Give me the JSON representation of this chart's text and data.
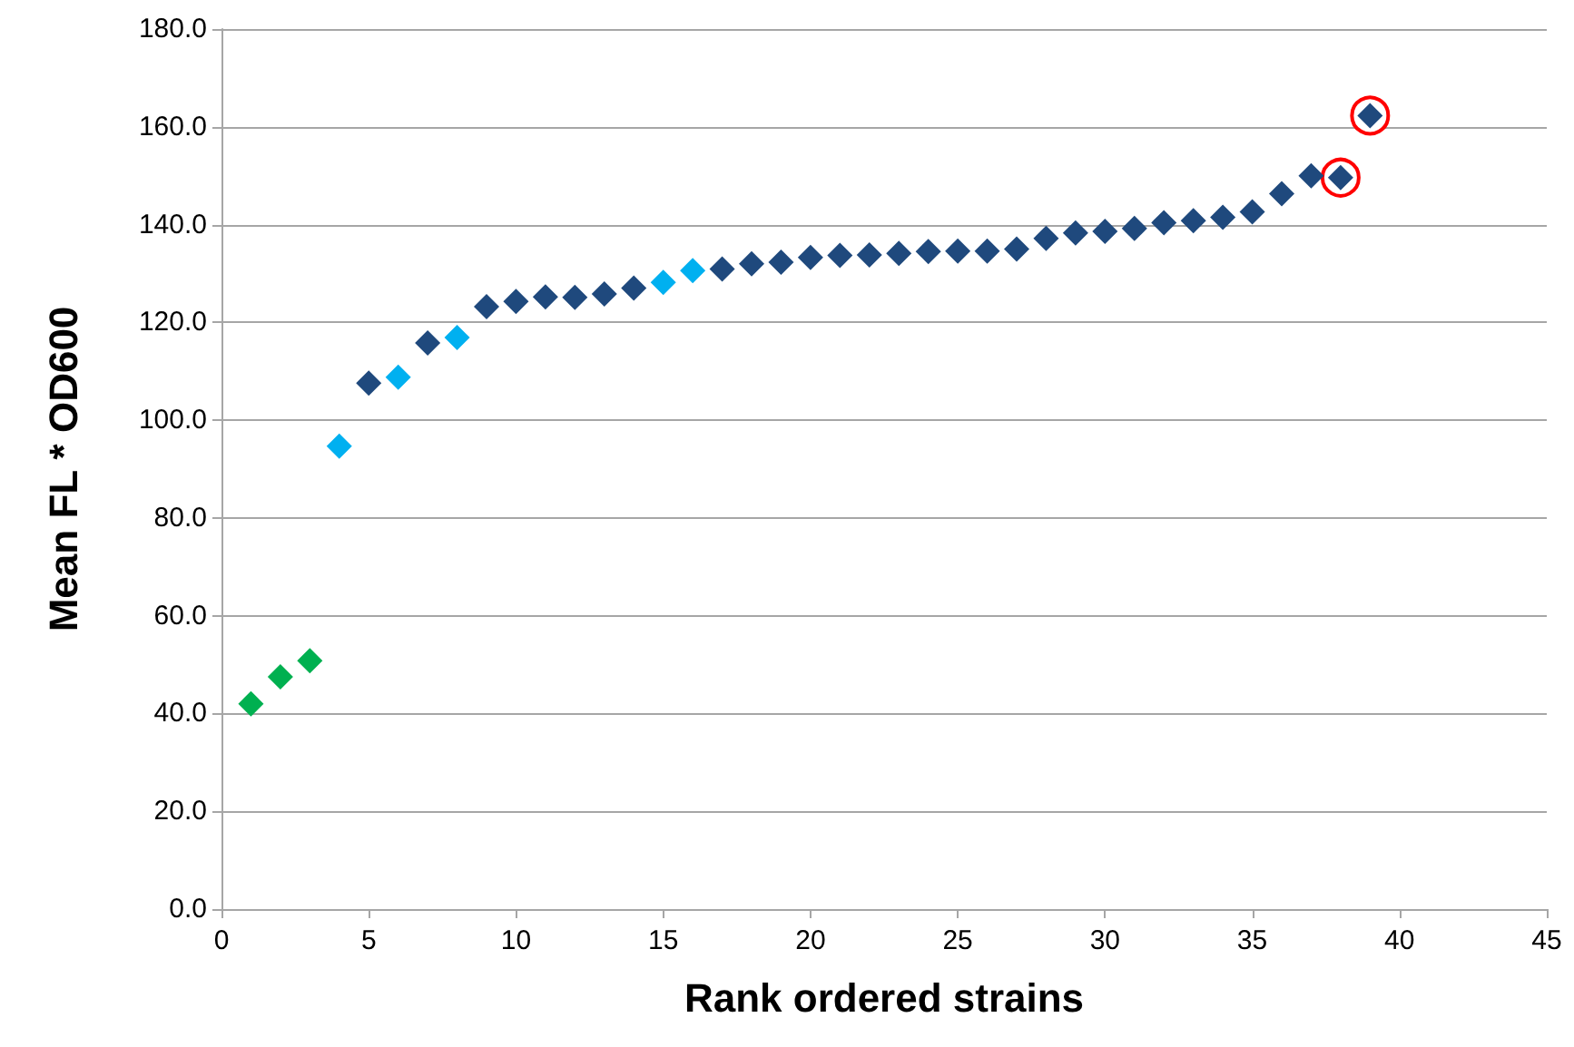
{
  "chart_data": {
    "type": "scatter",
    "xlabel": "Rank ordered strains",
    "ylabel": "Mean FL * OD600",
    "marker": "diamond",
    "grid": "y",
    "xlim": [
      0,
      45
    ],
    "xticks": [
      0,
      5,
      10,
      15,
      20,
      25,
      30,
      35,
      40,
      45
    ],
    "ylim": [
      0,
      180
    ],
    "yticks": [
      {
        "value": 0,
        "label": "0.0"
      },
      {
        "value": 20,
        "label": "20.0"
      },
      {
        "value": 40,
        "label": "40.0"
      },
      {
        "value": 60,
        "label": "60.0"
      },
      {
        "value": 80,
        "label": "80.0"
      },
      {
        "value": 100,
        "label": "100.0"
      },
      {
        "value": 120,
        "label": "120.0"
      },
      {
        "value": 140,
        "label": "140.0"
      },
      {
        "value": 160,
        "label": "160.0"
      },
      {
        "value": 180,
        "label": "180.0"
      }
    ],
    "series": [
      {
        "x": [
          1,
          2,
          3,
          4,
          5,
          6,
          7,
          8,
          9,
          10,
          11,
          12,
          13,
          14,
          15,
          16,
          17,
          18,
          19,
          20,
          21,
          22,
          23,
          24,
          25,
          26,
          27,
          28,
          29,
          30,
          31,
          32,
          33,
          34,
          35,
          36,
          37,
          38,
          39
        ],
        "values": [
          42,
          47.5,
          50.8,
          94.7,
          107.6,
          108.8,
          115.8,
          116.9,
          123.2,
          124.3,
          125.2,
          125.1,
          125.8,
          127,
          128.2,
          130.6,
          130.9,
          132,
          132.3,
          133.3,
          133.7,
          133.8,
          134.1,
          134.5,
          134.6,
          134.6,
          135,
          137.2,
          138.3,
          138.6,
          139.2,
          140.4,
          140.8,
          141.5,
          142.6,
          146.3,
          150,
          149.6,
          162.3
        ],
        "colors": [
          "#00b050",
          "#00b050",
          "#00b050",
          "#00b0f0",
          "#1f497d",
          "#00b0f0",
          "#1f497d",
          "#00b0f0",
          "#1f497d",
          "#1f497d",
          "#1f497d",
          "#1f497d",
          "#1f497d",
          "#1f497d",
          "#00b0f0",
          "#00b0f0",
          "#1f497d",
          "#1f497d",
          "#1f497d",
          "#1f497d",
          "#1f497d",
          "#1f497d",
          "#1f497d",
          "#1f497d",
          "#1f497d",
          "#1f497d",
          "#1f497d",
          "#1f497d",
          "#1f497d",
          "#1f497d",
          "#1f497d",
          "#1f497d",
          "#1f497d",
          "#1f497d",
          "#1f497d",
          "#1f497d",
          "#1f497d",
          "#1f497d",
          "#1f497d"
        ]
      },
      {
        "x": [
          38,
          39
        ],
        "values": [
          149.6,
          162.3
        ],
        "color": "#ff0000",
        "marker": "circle"
      }
    ]
  }
}
